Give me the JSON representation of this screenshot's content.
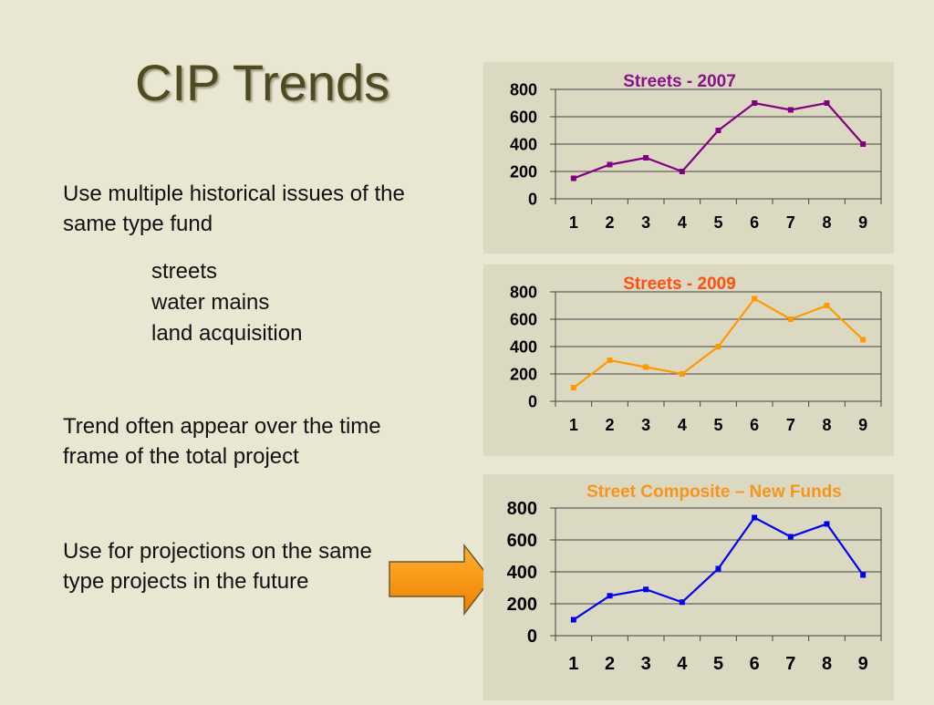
{
  "slide": {
    "title": "CIP Trends",
    "bullets": [
      "Use multiple historical issues of the same type fund",
      "Trend often appear over the time frame of the total project",
      "Use for projections on the same type projects in the future"
    ],
    "sub_items": [
      "streets",
      "water mains",
      "land acquisition"
    ]
  },
  "chart_data": [
    {
      "type": "line",
      "title": "Streets - 2007",
      "title_color": "#8b108b",
      "color": "#800080",
      "categories": [
        "1",
        "2",
        "3",
        "4",
        "5",
        "6",
        "7",
        "8",
        "9"
      ],
      "values": [
        150,
        250,
        300,
        200,
        500,
        700,
        650,
        700,
        400
      ],
      "ylim": [
        0,
        800
      ],
      "yticks": [
        "0",
        "200",
        "400",
        "600",
        "800"
      ],
      "grid": true
    },
    {
      "type": "line",
      "title": "Streets - 2009",
      "title_color": "#ff5010",
      "color": "#ff9900",
      "categories": [
        "1",
        "2",
        "3",
        "4",
        "5",
        "6",
        "7",
        "8",
        "9"
      ],
      "values": [
        100,
        300,
        250,
        200,
        400,
        750,
        600,
        700,
        450
      ],
      "ylim": [
        0,
        800
      ],
      "yticks": [
        "0",
        "200",
        "400",
        "600",
        "800"
      ],
      "grid": true
    },
    {
      "type": "line",
      "title": "Street Composite – New Funds",
      "title_color": "#f7941d",
      "color": "#0000ee",
      "categories": [
        "1",
        "2",
        "3",
        "4",
        "5",
        "6",
        "7",
        "8",
        "9"
      ],
      "values": [
        100,
        250,
        290,
        210,
        420,
        740,
        620,
        700,
        380
      ],
      "ylim": [
        0,
        800
      ],
      "yticks": [
        "0",
        "200",
        "400",
        "600",
        "800"
      ],
      "grid": true
    }
  ]
}
